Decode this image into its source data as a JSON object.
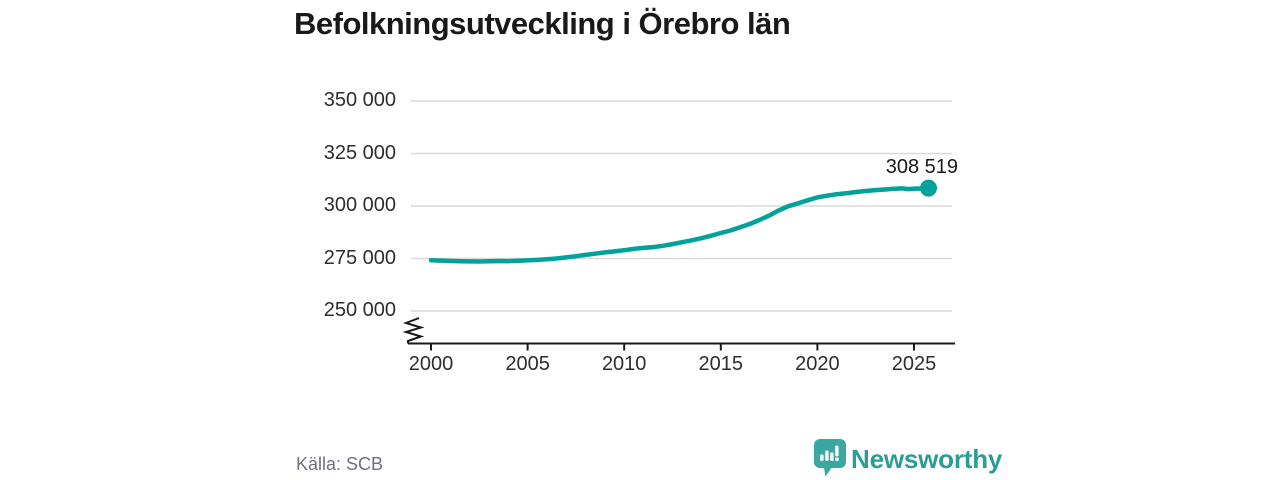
{
  "header": {
    "title": "Befolkningsutveckling i Örebro län"
  },
  "footer": {
    "source": "Källa: SCB",
    "brand": "Newsworthy"
  },
  "colors": {
    "background": "#ffffff",
    "line": "#00a29b",
    "end_dot": "#00a29b",
    "grid": "#d9d9d9",
    "axis": "#1a1a1a",
    "title_text": "#191919",
    "tick_text": "#2e2e2e",
    "source_text": "#6e7280",
    "brand_teal": "#2d9c96",
    "logo_bubble": "#3aa7a0"
  },
  "chart_data": {
    "type": "line",
    "title": "Befolkningsutveckling i Örebro län",
    "xlabel": "",
    "ylabel": "",
    "ylim": [
      250000,
      350000
    ],
    "xlim": [
      2000,
      2027
    ],
    "grid": "horizontal-only",
    "axis_break_at_bottom": true,
    "legend": "none",
    "yticks": [
      {
        "value": 250000,
        "label": "250 000"
      },
      {
        "value": 275000,
        "label": "275 000"
      },
      {
        "value": 300000,
        "label": "300 000"
      },
      {
        "value": 325000,
        "label": "325 000"
      },
      {
        "value": 350000,
        "label": "350 000"
      }
    ],
    "xticks": [
      {
        "value": 2000,
        "label": "2000"
      },
      {
        "value": 2005,
        "label": "2005"
      },
      {
        "value": 2010,
        "label": "2010"
      },
      {
        "value": 2015,
        "label": "2015"
      },
      {
        "value": 2020,
        "label": "2020"
      },
      {
        "value": 2025,
        "label": "2025"
      }
    ],
    "series": [
      {
        "points": [
          [
            2000.0,
            274200
          ],
          [
            2000.5,
            274000
          ],
          [
            2001.0,
            273850
          ],
          [
            2001.5,
            273700
          ],
          [
            2002.0,
            273600
          ],
          [
            2002.5,
            273550
          ],
          [
            2003.0,
            273650
          ],
          [
            2003.5,
            273800
          ],
          [
            2004.0,
            273750
          ],
          [
            2004.5,
            273900
          ],
          [
            2005.0,
            274100
          ],
          [
            2005.5,
            274350
          ],
          [
            2006.0,
            274600
          ],
          [
            2006.5,
            275000
          ],
          [
            2007.0,
            275500
          ],
          [
            2007.5,
            276100
          ],
          [
            2008.0,
            276700
          ],
          [
            2008.5,
            277300
          ],
          [
            2009.0,
            277900
          ],
          [
            2009.5,
            278400
          ],
          [
            2010.0,
            278950
          ],
          [
            2010.5,
            279550
          ],
          [
            2011.0,
            280050
          ],
          [
            2011.5,
            280450
          ],
          [
            2012.0,
            281050
          ],
          [
            2012.5,
            281850
          ],
          [
            2013.0,
            282750
          ],
          [
            2013.5,
            283650
          ],
          [
            2014.0,
            284650
          ],
          [
            2014.5,
            285850
          ],
          [
            2015.0,
            287150
          ],
          [
            2015.5,
            288350
          ],
          [
            2016.0,
            289850
          ],
          [
            2016.5,
            291450
          ],
          [
            2017.0,
            293350
          ],
          [
            2017.5,
            295450
          ],
          [
            2018.0,
            297900
          ],
          [
            2018.5,
            299900
          ],
          [
            2019.0,
            301300
          ],
          [
            2019.5,
            302700
          ],
          [
            2020.0,
            304100
          ],
          [
            2020.5,
            304900
          ],
          [
            2021.0,
            305600
          ],
          [
            2021.5,
            306100
          ],
          [
            2022.0,
            306650
          ],
          [
            2022.5,
            307150
          ],
          [
            2023.0,
            307550
          ],
          [
            2023.5,
            307850
          ],
          [
            2024.0,
            308250
          ],
          [
            2024.4,
            308400
          ],
          [
            2024.7,
            308050
          ],
          [
            2025.1,
            308350
          ],
          [
            2025.45,
            308200
          ],
          [
            2025.75,
            308519
          ]
        ]
      }
    ],
    "end_label": {
      "x": 2025.75,
      "value": 308519,
      "label": "308 519"
    }
  }
}
